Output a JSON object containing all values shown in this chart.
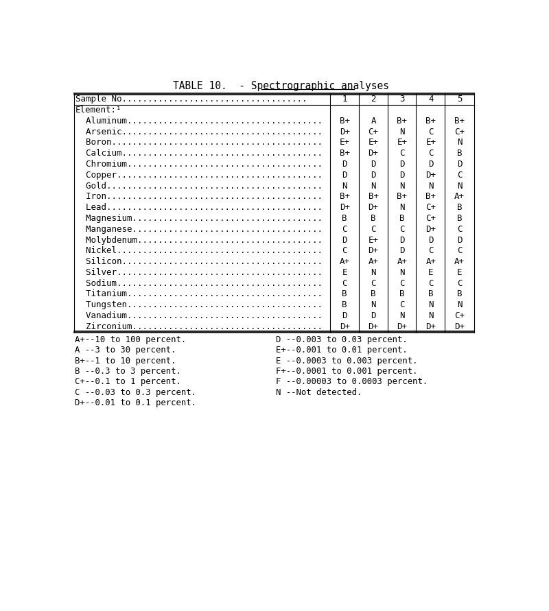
{
  "title_prefix": "TABLE 10.  - ",
  "title_underlined": "Spectrographic analyses",
  "columns": [
    "Sample No....................................",
    "1",
    "2",
    "3",
    "4",
    "5"
  ],
  "element_header": "Element:¹",
  "rows": [
    [
      "  Aluminum......................................",
      "B+",
      "A",
      "B+",
      "B+",
      "B+"
    ],
    [
      "  Arsenic.......................................",
      "D+",
      "C+",
      "N",
      "C",
      "C+"
    ],
    [
      "  Boron.........................................",
      "E+",
      "E+",
      "E+",
      "E+",
      "N"
    ],
    [
      "  Calcium.......................................",
      "B+",
      "D+",
      "C",
      "C",
      "B"
    ],
    [
      "  Chromium......................................",
      "D",
      "D",
      "D",
      "D",
      "D"
    ],
    [
      "  Copper........................................",
      "D",
      "D",
      "D",
      "D+",
      "C"
    ],
    [
      "  Gold..........................................",
      "N",
      "N",
      "N",
      "N",
      "N"
    ],
    [
      "  Iron..........................................",
      "B+",
      "B+",
      "B+",
      "B+",
      "A+"
    ],
    [
      "  Lead..........................................",
      "D+",
      "D+",
      "N",
      "C+",
      "B"
    ],
    [
      "  Magnesium.....................................",
      "B",
      "B",
      "B",
      "C+",
      "B"
    ],
    [
      "  Manganese.....................................",
      "C",
      "C",
      "C",
      "D+",
      "C"
    ],
    [
      "  Molybdenum....................................",
      "D",
      "E+",
      "D",
      "D",
      "D"
    ],
    [
      "  Nickel........................................",
      "C",
      "D+",
      "D",
      "C",
      "C"
    ],
    [
      "  Silicon.......................................",
      "A+",
      "A+",
      "A+",
      "A+",
      "A+"
    ],
    [
      "  Silver........................................",
      "E",
      "N",
      "N",
      "E",
      "E"
    ],
    [
      "  Sodium........................................",
      "C",
      "C",
      "C",
      "C",
      "C"
    ],
    [
      "  Titanium......................................",
      "B",
      "B",
      "B",
      "B",
      "B"
    ],
    [
      "  Tungsten......................................",
      "B",
      "N",
      "C",
      "N",
      "N"
    ],
    [
      "  Vanadium......................................",
      "D",
      "D",
      "N",
      "N",
      "C+"
    ],
    [
      "  Zirconium.....................................",
      "D+",
      "D+",
      "D+",
      "D+",
      "D+"
    ]
  ],
  "legend_left": [
    "A+--10 to 100 percent.",
    "A --3 to 30 percent.",
    "B+--1 to 10 percent.",
    "B --0.3 to 3 percent.",
    "C+--0.1 to 1 percent.",
    "C --0.03 to 0.3 percent.",
    "D+--0.01 to 0.1 percent."
  ],
  "legend_right": [
    "D --0.003 to 0.03 percent.",
    "E+--0.001 to 0.01 percent.",
    "E --0.0003 to 0.003 percent.",
    "F+--0.0001 to 0.001 percent.",
    "F --0.00003 to 0.0003 percent.",
    "N --Not detected."
  ],
  "bg_color": "#ffffff",
  "text_color": "#000000",
  "font_size": 9.0,
  "title_font_size": 10.5,
  "legend_font_size": 8.8
}
